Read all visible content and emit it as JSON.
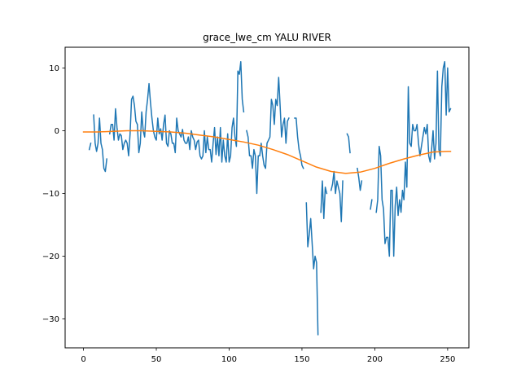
{
  "chart_data": {
    "type": "line",
    "title": "grace_lwe_cm YALU RIVER",
    "xlabel": "",
    "ylabel": "",
    "xlim": [
      -12.6,
      264.6
    ],
    "ylim": [
      -34.6,
      13.3
    ],
    "x_ticks": [
      0,
      50,
      100,
      150,
      200,
      250
    ],
    "y_ticks": [
      -30,
      -20,
      -10,
      0,
      10
    ],
    "x_tick_labels": [
      "0",
      "50",
      "100",
      "150",
      "200",
      "250"
    ],
    "y_tick_labels": [
      "−30",
      "−20",
      "−10",
      "0",
      "10"
    ],
    "grid": false,
    "legend": "none",
    "series": [
      {
        "color": "#1f77b4",
        "points": [
          [
            4,
            -3
          ],
          [
            5,
            -2
          ],
          null,
          [
            7,
            2.5
          ],
          [
            8,
            -2
          ],
          [
            9,
            -3.3
          ],
          [
            10,
            -2
          ],
          [
            11,
            2
          ],
          [
            12,
            -2
          ],
          [
            13,
            -3
          ],
          [
            14,
            -6
          ],
          [
            15,
            -6.5
          ],
          [
            16,
            -4.5
          ],
          null,
          [
            18,
            -0.5
          ],
          [
            19,
            1
          ],
          [
            20,
            1
          ],
          [
            21,
            -1.5
          ],
          [
            22,
            3.5
          ],
          [
            23,
            0.5
          ],
          [
            24,
            -1.5
          ],
          [
            25,
            -0.5
          ],
          [
            26,
            -0.8
          ],
          [
            27,
            -3
          ],
          [
            28,
            -2
          ],
          [
            29,
            -1.5
          ],
          [
            30,
            -2
          ],
          [
            31,
            -4
          ],
          [
            32,
            -0.5
          ],
          [
            33,
            5
          ],
          [
            34,
            5.5
          ],
          [
            35,
            4
          ],
          [
            36,
            1.5
          ],
          [
            37,
            1
          ],
          [
            38,
            -3.5
          ],
          [
            39,
            -2
          ],
          [
            40,
            3
          ],
          [
            41,
            0
          ],
          [
            42,
            -1
          ],
          [
            43,
            3
          ],
          [
            44,
            5
          ],
          [
            45,
            7.5
          ],
          [
            46,
            4.5
          ],
          [
            47,
            2
          ],
          [
            48,
            0
          ],
          [
            49,
            -1
          ],
          [
            50,
            -1.5
          ],
          [
            51,
            2
          ],
          [
            52,
            -0.5
          ],
          [
            53,
            0.3
          ],
          [
            54,
            -1.5
          ],
          [
            55,
            1
          ],
          [
            56,
            2.5
          ],
          [
            57,
            -2
          ],
          [
            58,
            -2.5
          ],
          [
            59,
            0
          ],
          [
            60,
            -0.5
          ],
          [
            61,
            -2
          ],
          [
            62,
            -2
          ],
          [
            63,
            -3.5
          ],
          [
            64,
            2
          ],
          [
            65,
            0
          ],
          [
            66,
            -0.5
          ],
          [
            67,
            -1
          ],
          [
            68,
            0.2
          ],
          [
            69,
            -1.5
          ],
          [
            70,
            -2
          ],
          [
            71,
            -2
          ],
          [
            72,
            -1
          ],
          [
            73,
            -3
          ],
          [
            74,
            0
          ],
          [
            75,
            -1
          ],
          [
            76,
            -1.5
          ],
          [
            77,
            -3
          ],
          [
            78,
            -1.8
          ],
          [
            79,
            -1.5
          ],
          [
            80,
            -4
          ],
          [
            81,
            -4.5
          ],
          [
            82,
            -4
          ],
          [
            83,
            0
          ],
          [
            84,
            -3.5
          ],
          [
            85,
            -1
          ],
          [
            86,
            -3
          ],
          [
            87,
            -3
          ],
          [
            88,
            -5
          ],
          [
            89,
            -2
          ],
          [
            90,
            0.5
          ],
          [
            91,
            -3.8
          ],
          [
            92,
            -1
          ],
          [
            93,
            -4
          ],
          [
            94,
            0.5
          ],
          [
            95,
            -5
          ],
          [
            96,
            -1.5
          ],
          [
            97,
            -4
          ],
          [
            98,
            -5
          ],
          [
            99,
            -0.5
          ],
          [
            100,
            -5
          ],
          [
            101,
            -4
          ],
          [
            102,
            0.5
          ],
          [
            103,
            2
          ],
          [
            104,
            -1
          ],
          [
            105,
            -2.5
          ],
          [
            106,
            9.5
          ],
          [
            107,
            9
          ],
          [
            108,
            11
          ],
          [
            109,
            5
          ],
          [
            110,
            3
          ],
          null,
          [
            112,
            0
          ],
          [
            113,
            -1
          ],
          [
            114,
            -4
          ],
          [
            115,
            -4
          ],
          [
            116,
            -6
          ],
          [
            117,
            -3
          ],
          [
            118,
            -4
          ],
          [
            119,
            -10
          ],
          [
            120,
            -4
          ],
          [
            121,
            -4
          ],
          [
            122,
            -2
          ],
          [
            123,
            -4
          ],
          [
            124,
            -5.5
          ],
          [
            125,
            -6
          ],
          [
            126,
            -2
          ],
          [
            127,
            -1.5
          ],
          [
            128,
            -1
          ],
          [
            129,
            5
          ],
          [
            130,
            4
          ],
          [
            131,
            1
          ],
          [
            132,
            5
          ],
          [
            133,
            4
          ],
          [
            134,
            8.5
          ],
          [
            135,
            4
          ],
          [
            136,
            -1
          ],
          [
            137,
            1
          ],
          [
            138,
            2
          ],
          [
            139,
            -2
          ],
          [
            140,
            1.5
          ],
          [
            141,
            2
          ],
          null,
          [
            145,
            2
          ],
          [
            146,
            2
          ],
          [
            147,
            -1
          ],
          [
            148,
            -3
          ],
          [
            149,
            -4
          ],
          [
            150,
            -5.5
          ],
          [
            151,
            -6
          ],
          null,
          [
            153,
            -11.5
          ],
          [
            154,
            -18.5
          ],
          [
            155,
            -16.5
          ],
          [
            156,
            -14
          ],
          [
            157,
            -18
          ],
          [
            158,
            -22
          ],
          [
            159,
            -20
          ],
          [
            160,
            -21
          ],
          [
            161,
            -32.5
          ],
          null,
          [
            163,
            -13
          ],
          [
            164,
            -8
          ],
          [
            165,
            -14
          ],
          [
            166,
            -9
          ],
          [
            167,
            -10
          ],
          null,
          [
            170,
            -9.5
          ],
          [
            171,
            -8.5
          ],
          [
            172,
            -6.5
          ],
          [
            173,
            -10
          ],
          [
            174,
            -8
          ],
          [
            175,
            -9
          ],
          [
            176,
            -10
          ],
          [
            177,
            -14.5
          ],
          [
            178,
            -8
          ],
          null,
          [
            181,
            -0.5
          ],
          [
            182,
            -1
          ],
          [
            183,
            -3.5
          ],
          null,
          [
            188,
            -6
          ],
          [
            189,
            -7.5
          ],
          [
            190,
            -9.5
          ],
          [
            191,
            -8
          ],
          null,
          [
            197,
            -12.5
          ],
          [
            198,
            -11
          ],
          null,
          [
            201,
            -13
          ],
          [
            202,
            -11
          ],
          [
            203,
            -2.5
          ],
          [
            204,
            -4
          ],
          [
            205,
            -11
          ],
          [
            206,
            -12.5
          ],
          [
            207,
            -18
          ],
          [
            208,
            -17
          ],
          [
            209,
            -17
          ],
          [
            210,
            -20
          ],
          [
            211,
            -9.5
          ],
          [
            212,
            -9.5
          ],
          [
            213,
            -20
          ],
          [
            214,
            -12
          ],
          [
            215,
            -9
          ],
          [
            216,
            -13.5
          ],
          [
            217,
            -11
          ],
          [
            218,
            -13
          ],
          [
            219,
            -9.5
          ],
          [
            220,
            -11
          ],
          [
            221,
            -5
          ],
          [
            222,
            -9
          ],
          [
            223,
            7
          ],
          [
            224,
            -2
          ],
          [
            225,
            -2.5
          ],
          [
            226,
            1
          ],
          [
            227,
            0
          ],
          [
            228,
            0
          ],
          [
            229,
            1
          ],
          [
            230,
            -2
          ],
          [
            231,
            -4
          ],
          [
            232,
            -2.5
          ],
          [
            233,
            -1
          ],
          [
            234,
            0.5
          ],
          [
            235,
            -0.5
          ],
          [
            236,
            1
          ],
          [
            237,
            -4
          ],
          [
            238,
            -5
          ],
          [
            239,
            -3
          ],
          [
            240,
            0
          ],
          [
            241,
            -4.5
          ],
          [
            242,
            -2
          ],
          [
            243,
            9.5
          ],
          [
            244,
            -3
          ],
          [
            245,
            -4
          ],
          [
            246,
            7
          ],
          [
            247,
            10
          ],
          [
            248,
            11
          ],
          [
            249,
            2.5
          ],
          [
            250,
            10
          ],
          [
            251,
            3
          ],
          [
            252,
            3.5
          ]
        ]
      },
      {
        "color": "#ff7f0e",
        "points": [
          [
            0,
            -0.2
          ],
          [
            10,
            -0.2
          ],
          [
            20,
            -0.1
          ],
          [
            30,
            0
          ],
          [
            40,
            0
          ],
          [
            50,
            -0.1
          ],
          [
            60,
            -0.2
          ],
          [
            70,
            -0.4
          ],
          [
            80,
            -0.7
          ],
          [
            90,
            -1.0
          ],
          [
            100,
            -1.4
          ],
          [
            110,
            -1.8
          ],
          [
            120,
            -2.3
          ],
          [
            130,
            -3.0
          ],
          [
            140,
            -3.8
          ],
          [
            150,
            -4.8
          ],
          [
            160,
            -5.8
          ],
          [
            170,
            -6.5
          ],
          [
            180,
            -6.8
          ],
          [
            190,
            -6.6
          ],
          [
            200,
            -6.0
          ],
          [
            210,
            -5.2
          ],
          [
            220,
            -4.5
          ],
          [
            230,
            -3.9
          ],
          [
            240,
            -3.4
          ],
          [
            250,
            -3.3
          ],
          [
            252,
            -3.3
          ]
        ]
      }
    ]
  }
}
